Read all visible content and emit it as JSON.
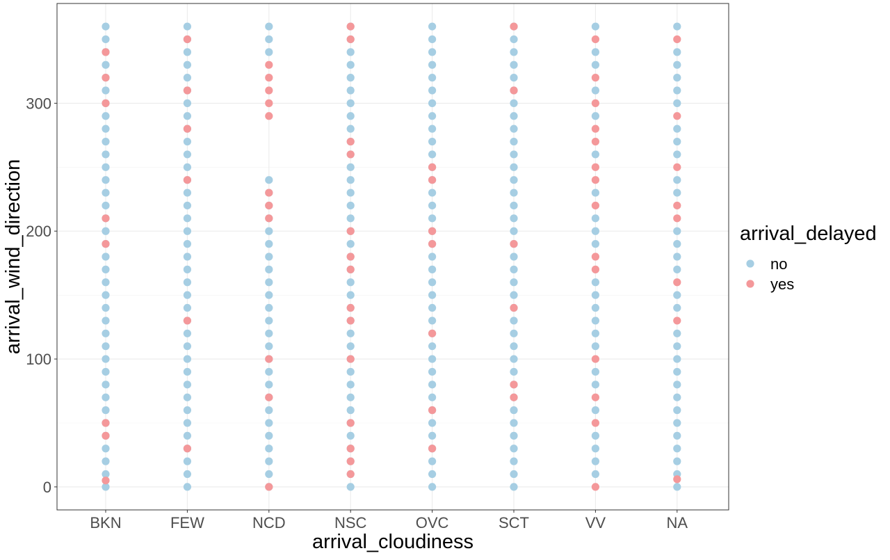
{
  "chart_data": {
    "type": "scatter",
    "xlabel": "arrival_cloudiness",
    "ylabel": "arrival_wind_direction",
    "categories": [
      "BKN",
      "FEW",
      "NCD",
      "NSC",
      "OVC",
      "SCT",
      "VV",
      "NA"
    ],
    "y_ticks": [
      0,
      100,
      200,
      300
    ],
    "ylim": [
      -18,
      378
    ],
    "grid": true,
    "legend": {
      "title": "arrival_delayed",
      "position": "right",
      "entries": [
        {
          "label": "no",
          "color": "#a6cee3"
        },
        {
          "label": "yes",
          "color": "#f4989a"
        }
      ]
    },
    "series": [
      {
        "name": "no",
        "color": "#a6cee3",
        "points": {
          "BKN": [
            0,
            10,
            20,
            30,
            40,
            50,
            60,
            70,
            80,
            90,
            100,
            110,
            120,
            130,
            140,
            150,
            160,
            170,
            180,
            190,
            200,
            210,
            220,
            230,
            240,
            250,
            260,
            270,
            280,
            290,
            300,
            310,
            320,
            330,
            340,
            350,
            360
          ],
          "FEW": [
            0,
            10,
            20,
            30,
            40,
            50,
            60,
            70,
            80,
            90,
            100,
            110,
            120,
            130,
            140,
            150,
            160,
            170,
            180,
            190,
            200,
            210,
            220,
            230,
            240,
            250,
            260,
            270,
            280,
            290,
            300,
            310,
            320,
            330,
            340,
            350,
            360
          ],
          "NCD": [
            0,
            10,
            20,
            30,
            40,
            50,
            60,
            70,
            80,
            90,
            100,
            110,
            120,
            130,
            140,
            150,
            160,
            170,
            180,
            190,
            200,
            210,
            220,
            230,
            240,
            340,
            350,
            360
          ],
          "NSC": [
            0,
            10,
            20,
            30,
            40,
            50,
            60,
            70,
            80,
            90,
            100,
            110,
            120,
            130,
            140,
            150,
            160,
            170,
            180,
            190,
            200,
            210,
            220,
            230,
            240,
            250,
            260,
            270,
            280,
            290,
            300,
            310,
            320,
            330,
            340,
            350,
            360
          ],
          "OVC": [
            0,
            10,
            20,
            30,
            40,
            50,
            60,
            70,
            80,
            90,
            100,
            110,
            120,
            130,
            140,
            150,
            160,
            170,
            180,
            190,
            200,
            210,
            220,
            230,
            240,
            250,
            260,
            270,
            280,
            290,
            300,
            310,
            320,
            330,
            340,
            350,
            360
          ],
          "SCT": [
            0,
            10,
            20,
            30,
            40,
            50,
            60,
            70,
            80,
            90,
            100,
            110,
            120,
            130,
            140,
            150,
            160,
            170,
            180,
            190,
            200,
            210,
            220,
            230,
            240,
            250,
            260,
            270,
            280,
            290,
            300,
            310,
            320,
            330,
            340,
            350,
            360
          ],
          "VV": [
            10,
            20,
            30,
            40,
            60,
            80,
            90,
            110,
            120,
            130,
            140,
            150,
            160,
            190,
            200,
            210,
            230,
            260,
            290,
            310,
            330,
            340,
            360
          ],
          "NA": [
            0,
            10,
            20,
            30,
            40,
            50,
            60,
            70,
            80,
            90,
            100,
            110,
            120,
            140,
            150,
            170,
            180,
            190,
            200,
            230,
            240,
            260,
            270,
            280,
            300,
            310,
            320,
            330,
            340,
            360
          ]
        }
      },
      {
        "name": "yes",
        "color": "#f4989a",
        "points": {
          "BKN": [
            5,
            40,
            50,
            190,
            210,
            300,
            320,
            340
          ],
          "FEW": [
            30,
            130,
            240,
            280,
            310,
            350
          ],
          "NCD": [
            0,
            70,
            100,
            210,
            220,
            230,
            290,
            300,
            310,
            320,
            330
          ],
          "NSC": [
            10,
            20,
            30,
            50,
            100,
            130,
            140,
            170,
            180,
            200,
            260,
            270,
            350,
            360
          ],
          "OVC": [
            30,
            60,
            120,
            190,
            200,
            240,
            250
          ],
          "SCT": [
            70,
            80,
            140,
            190,
            310,
            360
          ],
          "VV": [
            0,
            50,
            70,
            100,
            170,
            180,
            220,
            240,
            250,
            270,
            280,
            300,
            320,
            350
          ],
          "NA": [
            6,
            130,
            160,
            210,
            220,
            250,
            290,
            350
          ]
        }
      }
    ]
  }
}
